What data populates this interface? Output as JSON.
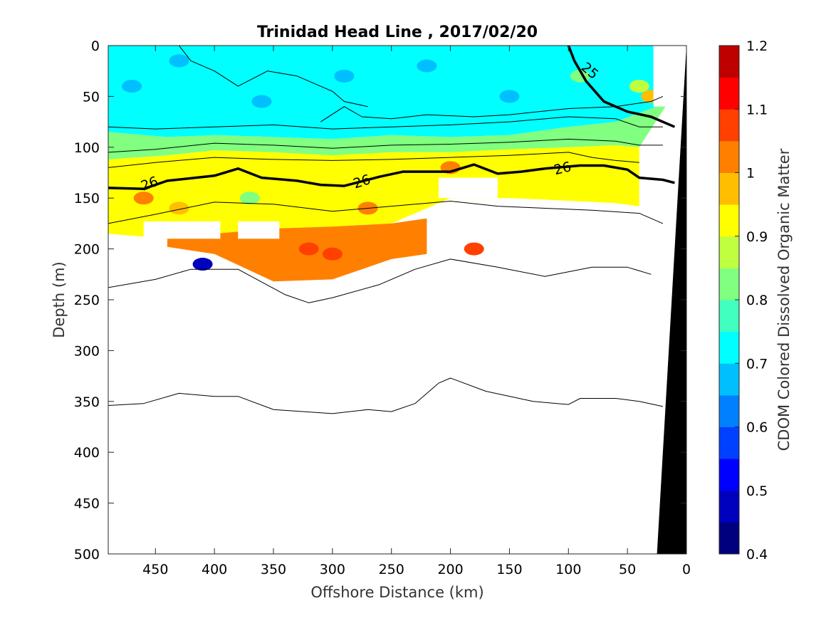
{
  "chart_data": {
    "type": "heatmap",
    "title": "Trinidad Head Line , 2017/02/20",
    "xlabel": "Offshore Distance (km)",
    "ylabel": "Depth (m)",
    "xlim": [
      490,
      0
    ],
    "ylim": [
      0,
      500
    ],
    "x_ticks": [
      "450",
      "400",
      "350",
      "300",
      "250",
      "200",
      "150",
      "100",
      "50",
      "0"
    ],
    "y_ticks": [
      "0",
      "50",
      "100",
      "150",
      "200",
      "250",
      "300",
      "350",
      "400",
      "450",
      "500"
    ],
    "colorbar": {
      "label": "CDOM Colored Dissolved Organic Matter",
      "min": 0.4,
      "max": 1.2,
      "ticks": [
        "0.4",
        "0.5",
        "0.6",
        "0.7",
        "0.8",
        "0.9",
        "1",
        "1.1",
        "1.2"
      ],
      "colors": [
        "#00007f",
        "#0000bf",
        "#0000ff",
        "#0040ff",
        "#0080ff",
        "#00bfff",
        "#00ffff",
        "#40ffbf",
        "#80ff80",
        "#bfff40",
        "#ffff00",
        "#ffbf00",
        "#ff8000",
        "#ff4000",
        "#ff0000",
        "#bf0000"
      ]
    },
    "bands": [
      {
        "name": "surface",
        "value": 0.72,
        "top": [
          [
            490,
            0
          ],
          [
            0,
            0
          ]
        ],
        "bottom": [
          [
            490,
            85
          ],
          [
            440,
            90
          ],
          [
            400,
            88
          ],
          [
            350,
            90
          ],
          [
            300,
            92
          ],
          [
            250,
            88
          ],
          [
            200,
            90
          ],
          [
            150,
            88
          ],
          [
            100,
            80
          ],
          [
            60,
            75
          ],
          [
            30,
            62
          ],
          [
            15,
            55
          ]
        ]
      },
      {
        "name": "transition",
        "value": 0.82,
        "top": [
          [
            490,
            85
          ],
          [
            440,
            90
          ],
          [
            400,
            88
          ],
          [
            350,
            90
          ],
          [
            300,
            92
          ],
          [
            250,
            88
          ],
          [
            200,
            90
          ],
          [
            150,
            88
          ],
          [
            100,
            80
          ],
          [
            60,
            75
          ],
          [
            30,
            62
          ],
          [
            15,
            55
          ]
        ],
        "bottom": [
          [
            490,
            112
          ],
          [
            440,
            108
          ],
          [
            400,
            103
          ],
          [
            350,
            105
          ],
          [
            300,
            108
          ],
          [
            250,
            105
          ],
          [
            200,
            105
          ],
          [
            150,
            102
          ],
          [
            100,
            100
          ],
          [
            60,
            98
          ],
          [
            40,
            100
          ]
        ]
      },
      {
        "name": "core",
        "value": 0.93,
        "top": [
          [
            490,
            112
          ],
          [
            440,
            108
          ],
          [
            400,
            103
          ],
          [
            350,
            105
          ],
          [
            300,
            108
          ],
          [
            250,
            105
          ],
          [
            200,
            105
          ],
          [
            150,
            102
          ],
          [
            100,
            100
          ],
          [
            60,
            98
          ],
          [
            40,
            100
          ]
        ],
        "bottom": [
          [
            490,
            185
          ],
          [
            440,
            190
          ],
          [
            400,
            185
          ],
          [
            350,
            180
          ],
          [
            300,
            178
          ],
          [
            250,
            175
          ],
          [
            220,
            160
          ],
          [
            200,
            150
          ],
          [
            150,
            150
          ],
          [
            110,
            152
          ],
          [
            60,
            155
          ],
          [
            40,
            158
          ]
        ]
      },
      {
        "name": "deep",
        "value": 1.0,
        "top": [
          [
            440,
            190
          ],
          [
            400,
            185
          ],
          [
            350,
            180
          ],
          [
            300,
            178
          ],
          [
            250,
            175
          ],
          [
            220,
            170
          ]
        ],
        "bottom": [
          [
            440,
            198
          ],
          [
            400,
            205
          ],
          [
            350,
            232
          ],
          [
            300,
            230
          ],
          [
            250,
            210
          ],
          [
            220,
            205
          ]
        ]
      }
    ],
    "blanks": [
      {
        "x": [
          460,
          395
        ],
        "y": [
          173,
          190
        ]
      },
      {
        "x": [
          380,
          345
        ],
        "y": [
          173,
          190
        ]
      },
      {
        "x": [
          210,
          160
        ],
        "y": [
          130,
          150
        ]
      },
      {
        "x": [
          210,
          160
        ],
        "y": [
          160,
          185
        ]
      },
      {
        "x": [
          150,
          60
        ],
        "y": [
          155,
          200
        ]
      },
      {
        "x": [
          28,
          0
        ],
        "y": [
          0,
          60
        ]
      }
    ],
    "patches": [
      {
        "x": 470,
        "y": 40,
        "value": 0.66
      },
      {
        "x": 430,
        "y": 15,
        "value": 0.68
      },
      {
        "x": 360,
        "y": 55,
        "value": 0.66
      },
      {
        "x": 290,
        "y": 30,
        "value": 0.67
      },
      {
        "x": 220,
        "y": 20,
        "value": 0.66
      },
      {
        "x": 150,
        "y": 50,
        "value": 0.67
      },
      {
        "x": 90,
        "y": 30,
        "value": 0.8
      },
      {
        "x": 40,
        "y": 40,
        "value": 0.86
      },
      {
        "x": 30,
        "y": 50,
        "value": 0.97
      },
      {
        "x": 320,
        "y": 200,
        "value": 1.08
      },
      {
        "x": 300,
        "y": 205,
        "value": 1.06
      },
      {
        "x": 180,
        "y": 200,
        "value": 1.05
      },
      {
        "x": 330,
        "y": 215,
        "value": 1.02
      },
      {
        "x": 270,
        "y": 160,
        "value": 1.0
      },
      {
        "x": 200,
        "y": 120,
        "value": 1.0
      },
      {
        "x": 430,
        "y": 160,
        "value": 0.98
      },
      {
        "x": 410,
        "y": 215,
        "value": 0.48
      },
      {
        "x": 370,
        "y": 150,
        "value": 0.82
      },
      {
        "x": 460,
        "y": 150,
        "value": 1.0
      }
    ],
    "bottom_topography": {
      "name": "seafloor",
      "points": [
        [
          0,
          0
        ],
        [
          25,
          500
        ],
        [
          0,
          500
        ]
      ]
    },
    "isopycnals": [
      {
        "label": "25",
        "width": "bold",
        "points": [
          [
            100,
            0
          ],
          [
            95,
            15
          ],
          [
            85,
            35
          ],
          [
            70,
            55
          ],
          [
            50,
            65
          ],
          [
            30,
            70
          ],
          [
            10,
            80
          ]
        ]
      },
      {
        "label": "",
        "width": "thin",
        "points": [
          [
            430,
            0
          ],
          [
            420,
            15
          ],
          [
            400,
            25
          ],
          [
            380,
            40
          ],
          [
            355,
            25
          ],
          [
            330,
            30
          ],
          [
            300,
            45
          ],
          [
            290,
            55
          ],
          [
            270,
            60
          ]
        ]
      },
      {
        "label": "",
        "width": "thin",
        "points": [
          [
            310,
            75
          ],
          [
            290,
            60
          ],
          [
            275,
            70
          ],
          [
            250,
            72
          ],
          [
            220,
            68
          ],
          [
            180,
            70
          ],
          [
            150,
            68
          ],
          [
            100,
            62
          ],
          [
            60,
            60
          ],
          [
            30,
            55
          ],
          [
            20,
            50
          ]
        ]
      },
      {
        "label": "",
        "width": "thin",
        "points": [
          [
            490,
            80
          ],
          [
            450,
            82
          ],
          [
            400,
            80
          ],
          [
            350,
            78
          ],
          [
            300,
            82
          ],
          [
            250,
            80
          ],
          [
            200,
            78
          ],
          [
            150,
            75
          ],
          [
            100,
            70
          ],
          [
            60,
            72
          ],
          [
            40,
            80
          ],
          [
            20,
            80
          ]
        ]
      },
      {
        "label": "",
        "width": "thin",
        "points": [
          [
            490,
            105
          ],
          [
            450,
            102
          ],
          [
            400,
            96
          ],
          [
            350,
            98
          ],
          [
            300,
            101
          ],
          [
            250,
            98
          ],
          [
            200,
            97
          ],
          [
            150,
            95
          ],
          [
            100,
            92
          ],
          [
            60,
            94
          ],
          [
            40,
            98
          ],
          [
            20,
            98
          ]
        ]
      },
      {
        "label": "",
        "width": "thin",
        "points": [
          [
            490,
            120
          ],
          [
            450,
            115
          ],
          [
            400,
            110
          ],
          [
            350,
            112
          ],
          [
            300,
            113
          ],
          [
            250,
            112
          ],
          [
            200,
            110
          ],
          [
            150,
            108
          ],
          [
            100,
            105
          ],
          [
            80,
            110
          ],
          [
            60,
            113
          ],
          [
            40,
            115
          ]
        ]
      },
      {
        "label": "26",
        "width": "bold",
        "points": [
          [
            490,
            140
          ],
          [
            460,
            141
          ],
          [
            440,
            133
          ],
          [
            400,
            128
          ],
          [
            380,
            121
          ],
          [
            360,
            130
          ],
          [
            330,
            133
          ],
          [
            310,
            137
          ],
          [
            290,
            138
          ],
          [
            260,
            129
          ],
          [
            240,
            124
          ],
          [
            200,
            124
          ],
          [
            180,
            117
          ],
          [
            160,
            126
          ],
          [
            140,
            124
          ],
          [
            120,
            121
          ],
          [
            90,
            118
          ],
          [
            70,
            118
          ],
          [
            50,
            122
          ],
          [
            40,
            130
          ],
          [
            20,
            132
          ],
          [
            10,
            135
          ]
        ]
      },
      {
        "label": "",
        "width": "thin",
        "points": [
          [
            490,
            175
          ],
          [
            450,
            166
          ],
          [
            400,
            154
          ],
          [
            350,
            156
          ],
          [
            300,
            163
          ],
          [
            250,
            158
          ],
          [
            200,
            153
          ],
          [
            160,
            158
          ],
          [
            120,
            160
          ],
          [
            80,
            162
          ],
          [
            40,
            165
          ],
          [
            20,
            175
          ]
        ]
      },
      {
        "label": "",
        "width": "thin",
        "points": [
          [
            490,
            238
          ],
          [
            450,
            230
          ],
          [
            420,
            220
          ],
          [
            380,
            220
          ],
          [
            340,
            245
          ],
          [
            320,
            253
          ],
          [
            300,
            248
          ],
          [
            260,
            235
          ],
          [
            230,
            220
          ],
          [
            200,
            210
          ],
          [
            160,
            218
          ],
          [
            120,
            227
          ],
          [
            80,
            218
          ],
          [
            50,
            218
          ],
          [
            30,
            225
          ]
        ]
      },
      {
        "label": "",
        "width": "thin",
        "points": [
          [
            490,
            354
          ],
          [
            460,
            352
          ],
          [
            430,
            342
          ],
          [
            400,
            345
          ],
          [
            380,
            345
          ],
          [
            350,
            358
          ],
          [
            300,
            362
          ],
          [
            270,
            358
          ],
          [
            250,
            360
          ],
          [
            230,
            352
          ],
          [
            210,
            332
          ],
          [
            200,
            327
          ],
          [
            170,
            340
          ],
          [
            130,
            350
          ],
          [
            100,
            353
          ],
          [
            90,
            347
          ],
          [
            60,
            347
          ],
          [
            40,
            350
          ],
          [
            20,
            355
          ]
        ]
      }
    ],
    "contour_labels": [
      {
        "text": "26",
        "x": 455,
        "y": 136,
        "angle": -20
      },
      {
        "text": "26",
        "x": 275,
        "y": 134,
        "angle": -18
      },
      {
        "text": "26",
        "x": 105,
        "y": 121,
        "angle": -14
      },
      {
        "text": "25",
        "x": 82,
        "y": 25,
        "angle": 40
      }
    ]
  }
}
